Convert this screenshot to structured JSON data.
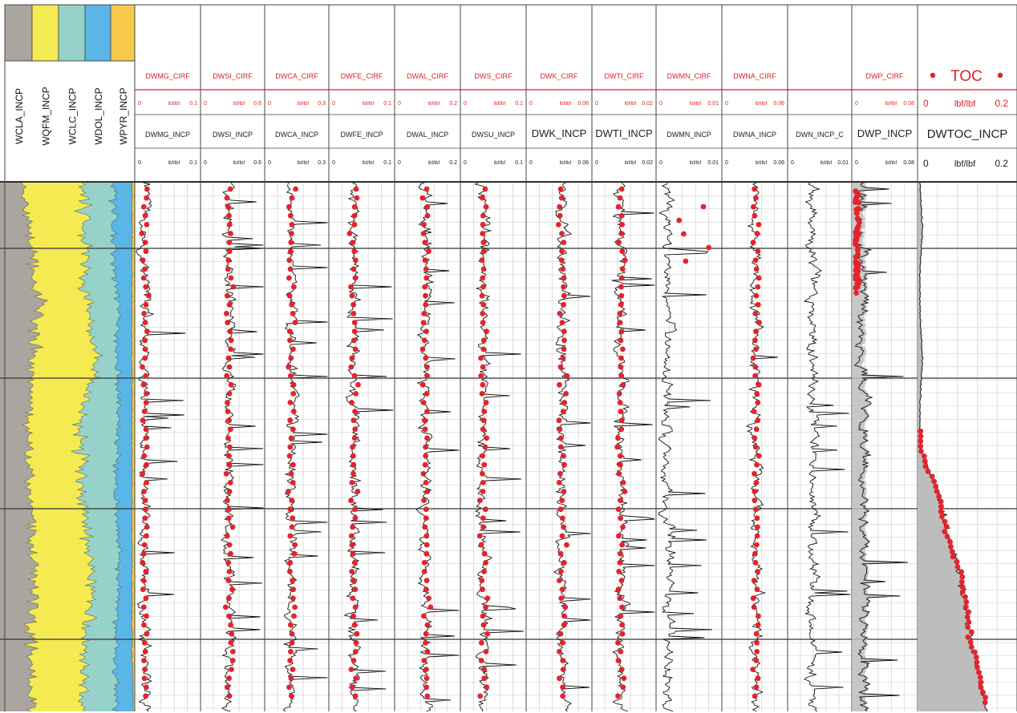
{
  "colors": {
    "header_red": "#e0202a",
    "curve_black": "#111111",
    "sample_red": "#e2242c",
    "clay_gray": "#aaa69f",
    "quartz_yellow": "#f5ea52",
    "calcite_teal": "#96d2ca",
    "dolomite_blue": "#5ab6e6",
    "pyrite_orange": "#f7c94a",
    "grid_gray": "#c8c8c8",
    "fill_gray": "#bdbdbd"
  },
  "mineral_track": {
    "labels": [
      "WCLA_INCP",
      "WQFM_INCP",
      "WCLC_INCP",
      "WDOL_INCP",
      "WPYR_INCP"
    ]
  },
  "tracks": [
    {
      "cirf": "DWMG_CIRF",
      "incp": "DWMG_INCP",
      "cmin": "0",
      "cunit": "lbf/lbf",
      "cmax": "0.1",
      "imin": "0",
      "iunit": "lbf/lbf",
      "imax": "0.1"
    },
    {
      "cirf": "DWSI_CIRF",
      "incp": "DWSI_INCP",
      "cmin": "0",
      "cunit": "lbf/lbf",
      "cmax": "0.6",
      "imin": "0",
      "iunit": "lbf/lbf",
      "imax": "0.6"
    },
    {
      "cirf": "DWCA_CIRF",
      "incp": "DWCA_INCP",
      "cmin": "0",
      "cunit": "lbf/lbf",
      "cmax": "0.3",
      "imin": "0",
      "iunit": "lbf/lbf",
      "imax": "0.3"
    },
    {
      "cirf": "DWFE_CIRF",
      "incp": "DWFE_INCP",
      "cmin": "0",
      "cunit": "lbf/lbf",
      "cmax": "0.1",
      "imin": "0",
      "iunit": "lbf/lbf",
      "imax": "0.1"
    },
    {
      "cirf": "DWAL_CIRF",
      "incp": "DWAL_INCP",
      "cmin": "0",
      "cunit": "lbf/lbf",
      "cmax": "0.2",
      "imin": "0",
      "iunit": "lbf/lbf",
      "imax": "0.2"
    },
    {
      "cirf": "DWS_CIRF",
      "incp": "DWSU_INCP",
      "cmin": "0",
      "cunit": "lbf/lbf",
      "cmax": "0.1",
      "imin": "0",
      "iunit": "lbf/lbf",
      "imax": "0.1"
    },
    {
      "cirf": "DWK_CIRF",
      "incp": "DWK_INCP",
      "cmin": "0",
      "cunit": "lbf/lbf",
      "cmax": "0.06",
      "imin": "0",
      "iunit": "lbf/lbf",
      "imax": "0.06",
      "big": true
    },
    {
      "cirf": "DWTI_CIRF",
      "incp": "DWTI_INCP",
      "cmin": "0",
      "cunit": "lbf/lbf",
      "cmax": "0.02",
      "imin": "0",
      "iunit": "lbf/lbf",
      "imax": "0.02",
      "big": true
    },
    {
      "cirf": "DWMN_CIRF",
      "incp": "DWMN_INCP",
      "cmin": "0",
      "cunit": "lbf/lbf",
      "cmax": "0.01",
      "imin": "0",
      "iunit": "lbf/lbf",
      "imax": "0.01"
    },
    {
      "cirf": "DWNA_CIRF",
      "incp": "DWNA_INCP",
      "cmin": "0",
      "cunit": "lbf/lbf",
      "cmax": "0.06",
      "imin": "0",
      "iunit": "lbf/lbf",
      "imax": "0.06"
    },
    {
      "cirf": "",
      "incp": "DWN_INCP_C",
      "cmin": "",
      "cunit": "",
      "cmax": "",
      "imin": "0",
      "iunit": "lbf/lbf",
      "imax": "0.01"
    },
    {
      "cirf": "DWP_CIRF",
      "incp": "DWP_INCP",
      "cmin": "0",
      "cunit": "lbf/lbf",
      "cmax": "0.08",
      "imin": "0",
      "iunit": "lbf/lbf",
      "imax": "0.08",
      "big": true
    }
  ],
  "toc_track": {
    "title": "TOC",
    "incp": "DWTOC_INCP",
    "cmin": "0",
    "cunit": "lbf/lbf",
    "cmax": "0.2",
    "imin": "0",
    "iunit": "lbf/lbf",
    "imax": "0.2"
  },
  "chart_data": {
    "type": "line",
    "track_count": 12,
    "mineral_fractions_top_to_bottom": {
      "clay": [
        0.18,
        0.22,
        0.28,
        0.25,
        0.2,
        0.22,
        0.24,
        0.26,
        0.22,
        0.24
      ],
      "quartz": [
        0.45,
        0.42,
        0.35,
        0.48,
        0.4,
        0.38,
        0.4,
        0.42,
        0.4,
        0.38
      ],
      "calcite": [
        0.22,
        0.2,
        0.25,
        0.14,
        0.28,
        0.26,
        0.24,
        0.2,
        0.24,
        0.24
      ],
      "dolomite": [
        0.13,
        0.14,
        0.1,
        0.11,
        0.1,
        0.12,
        0.1,
        0.1,
        0.12,
        0.13
      ],
      "pyrite": [
        0.02,
        0.02,
        0.02,
        0.02,
        0.02,
        0.02,
        0.02,
        0.02,
        0.02,
        0.01
      ]
    },
    "track_mean_fraction_of_scale": [
      0.15,
      0.45,
      0.42,
      0.38,
      0.48,
      0.35,
      0.55,
      0.45,
      0.18,
      0.52,
      0.4,
      0.18
    ],
    "toc_profile_top_to_bottom": [
      0.005,
      0.01,
      0.005,
      0.005,
      0.01,
      0.005,
      0.005,
      0.04,
      0.06,
      0.09,
      0.1,
      0.12,
      0.14
    ],
    "grid": true
  }
}
